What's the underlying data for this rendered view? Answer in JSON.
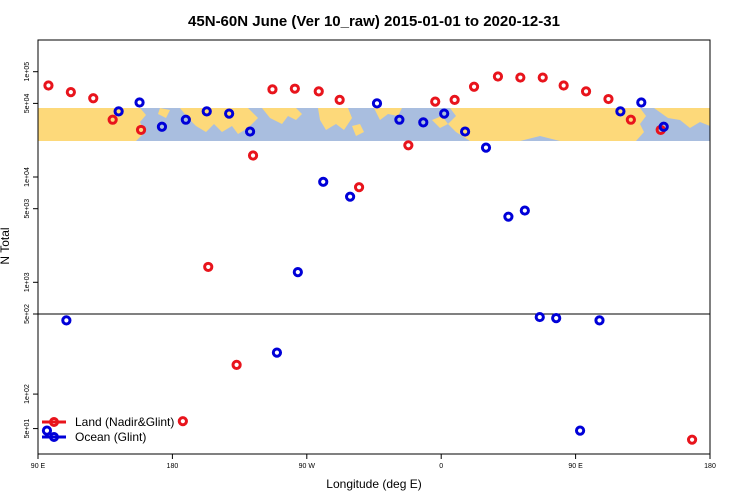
{
  "chart_data": {
    "type": "scatter",
    "title": "45N-60N June (Ver 10_raw)   2015-01-01 to 2020-12-31",
    "xlabel": "Longitude (deg E)",
    "ylabel": "N Total",
    "x_ticks": [
      {
        "value": 90,
        "label": "90 E"
      },
      {
        "value": 180,
        "label": "180"
      },
      {
        "value": 270,
        "label": "90 W"
      },
      {
        "value": 360,
        "label": "0"
      },
      {
        "value": 450,
        "label": "90 E"
      },
      {
        "value": 540,
        "label": "180"
      }
    ],
    "xlim": [
      90,
      540
    ],
    "upper_panel": {
      "scale": "log",
      "ylim": [
        500,
        200000
      ],
      "y_ticks": [
        {
          "value": 1000,
          "label": "1e+03"
        },
        {
          "value": 5000,
          "label": "5e+03"
        },
        {
          "value": 10000,
          "label": "1e+04"
        },
        {
          "value": 50000,
          "label": "5e+04"
        },
        {
          "value": 100000,
          "label": "1e+05"
        }
      ]
    },
    "lower_panel": {
      "scale": "log",
      "ylim": [
        30,
        500
      ],
      "y_ticks": [
        {
          "value": 50,
          "label": "5e+01"
        },
        {
          "value": 100,
          "label": "1e+02"
        },
        {
          "value": 500,
          "label": "5e+02"
        }
      ]
    },
    "legend": {
      "position": "bottom-left",
      "entries": [
        {
          "label": "Land (Nadir&Glint)",
          "color": "#e8141c"
        },
        {
          "label": "Ocean (Glint)",
          "color": "#0000d8"
        }
      ]
    },
    "series": [
      {
        "name": "Land (Nadir&Glint)",
        "color": "#e8141c",
        "points": [
          {
            "x": 97,
            "y": 74000
          },
          {
            "x": 112,
            "y": 64000
          },
          {
            "x": 127,
            "y": 56000
          },
          {
            "x": 140,
            "y": 35000
          },
          {
            "x": 159,
            "y": 28000
          },
          {
            "x": 187,
            "y": 58
          },
          {
            "x": 204,
            "y": 1400
          },
          {
            "x": 223,
            "y": 180
          },
          {
            "x": 234,
            "y": 16000
          },
          {
            "x": 247,
            "y": 68000
          },
          {
            "x": 262,
            "y": 69000
          },
          {
            "x": 278,
            "y": 65000
          },
          {
            "x": 292,
            "y": 54000
          },
          {
            "x": 305,
            "y": 8000
          },
          {
            "x": 338,
            "y": 20000
          },
          {
            "x": 356,
            "y": 52000
          },
          {
            "x": 369,
            "y": 54000
          },
          {
            "x": 382,
            "y": 72000
          },
          {
            "x": 398,
            "y": 90000
          },
          {
            "x": 413,
            "y": 88000
          },
          {
            "x": 428,
            "y": 88000
          },
          {
            "x": 442,
            "y": 74000
          },
          {
            "x": 457,
            "y": 65000
          },
          {
            "x": 472,
            "y": 55000
          },
          {
            "x": 487,
            "y": 35000
          },
          {
            "x": 507,
            "y": 28000
          },
          {
            "x": 528,
            "y": 40
          }
        ]
      },
      {
        "name": "Ocean (Glint)",
        "color": "#0000d8",
        "points": [
          {
            "x": 96,
            "y": 48
          },
          {
            "x": 109,
            "y": 440
          },
          {
            "x": 144,
            "y": 42000
          },
          {
            "x": 158,
            "y": 51000
          },
          {
            "x": 173,
            "y": 30000
          },
          {
            "x": 189,
            "y": 35000
          },
          {
            "x": 203,
            "y": 42000
          },
          {
            "x": 218,
            "y": 40000
          },
          {
            "x": 232,
            "y": 27000
          },
          {
            "x": 250,
            "y": 230
          },
          {
            "x": 264,
            "y": 1250
          },
          {
            "x": 281,
            "y": 9000
          },
          {
            "x": 299,
            "y": 6500
          },
          {
            "x": 317,
            "y": 50000
          },
          {
            "x": 332,
            "y": 35000
          },
          {
            "x": 348,
            "y": 33000
          },
          {
            "x": 362,
            "y": 40000
          },
          {
            "x": 376,
            "y": 27000
          },
          {
            "x": 390,
            "y": 19000
          },
          {
            "x": 405,
            "y": 4200
          },
          {
            "x": 416,
            "y": 4800
          },
          {
            "x": 426,
            "y": 470
          },
          {
            "x": 437,
            "y": 460
          },
          {
            "x": 453,
            "y": 48
          },
          {
            "x": 466,
            "y": 440
          },
          {
            "x": 480,
            "y": 42000
          },
          {
            "x": 494,
            "y": 51000
          },
          {
            "x": 509,
            "y": 30000
          }
        ]
      }
    ]
  }
}
